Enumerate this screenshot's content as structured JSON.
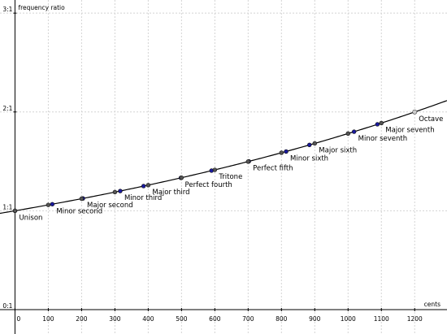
{
  "chart_data": {
    "type": "line",
    "xlabel": "cents",
    "ylabel": "frequency ratio",
    "xlim": [
      -45,
      1297
    ],
    "ylim": [
      0,
      3.1
    ],
    "x_ticks": [
      0,
      100,
      200,
      300,
      400,
      500,
      600,
      700,
      800,
      900,
      1000,
      1100,
      1200
    ],
    "x_tick_labels": [
      "0",
      "100",
      "200",
      "300",
      "400",
      "500",
      "600",
      "700",
      "800",
      "900",
      "1000",
      "1100",
      "1200"
    ],
    "y_ticks": [
      0,
      1,
      2,
      3
    ],
    "y_tick_labels": [
      "0:1",
      "1:1",
      "2:1",
      "3:1"
    ],
    "grid": true,
    "curve": {
      "function": "2^(cents/1200)",
      "x_range": [
        -45,
        1297
      ]
    },
    "series": [
      {
        "marker_color": "#1a1a9e",
        "x": [
          0,
          112,
          204,
          316,
          386,
          498,
          590,
          702,
          814,
          884,
          1018,
          1088,
          1200
        ],
        "y": [
          1.0,
          1.0667,
          1.125,
          1.2,
          1.25,
          1.3333,
          1.4063,
          1.5,
          1.6,
          1.6667,
          1.8,
          1.875,
          2.0
        ]
      },
      {
        "marker_color": "#555555",
        "x": [
          0,
          100,
          200,
          300,
          400,
          500,
          600,
          700,
          800,
          900,
          1000,
          1100,
          1200
        ],
        "y": [
          1.0,
          1.0595,
          1.1225,
          1.1892,
          1.2599,
          1.3348,
          1.4142,
          1.4983,
          1.5874,
          1.6818,
          1.7818,
          1.8877,
          2.0
        ]
      }
    ],
    "annotations": [
      {
        "text": "Unison",
        "x": 0,
        "y": 1.0
      },
      {
        "text": "Minor second",
        "x": 112,
        "y": 1.0667
      },
      {
        "text": "Major second",
        "x": 204,
        "y": 1.125
      },
      {
        "text": "Minor third",
        "x": 316,
        "y": 1.2
      },
      {
        "text": "Major third",
        "x": 400,
        "y": 1.2599
      },
      {
        "text": "Perfect fourth",
        "x": 498,
        "y": 1.3333
      },
      {
        "text": "Tritone",
        "x": 600,
        "y": 1.4142
      },
      {
        "text": "Perfect fifth",
        "x": 702,
        "y": 1.5
      },
      {
        "text": "Minor sixth",
        "x": 814,
        "y": 1.6
      },
      {
        "text": "Major sixth",
        "x": 900,
        "y": 1.6818
      },
      {
        "text": "Minor seventh",
        "x": 1018,
        "y": 1.8
      },
      {
        "text": "Major seventh",
        "x": 1100,
        "y": 1.8877
      },
      {
        "text": "Octave",
        "x": 1200,
        "y": 2.0
      }
    ]
  }
}
